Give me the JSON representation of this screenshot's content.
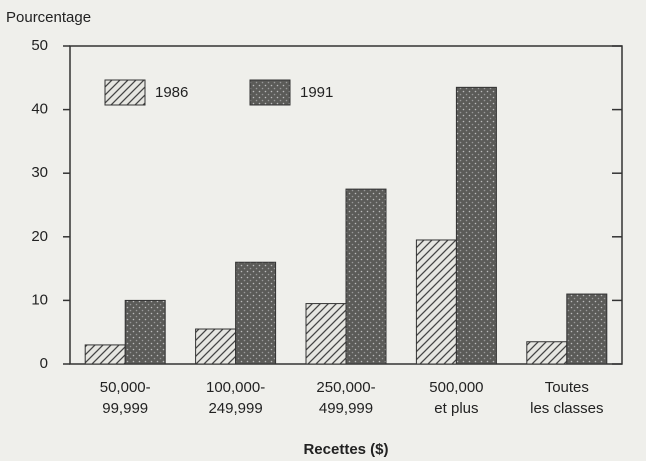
{
  "chart_data": {
    "type": "bar",
    "y_label": "Pourcentage",
    "x_label": "Recettes ($)",
    "categories": [
      [
        "50,000-",
        "99,999"
      ],
      [
        "100,000-",
        "249,999"
      ],
      [
        "250,000-",
        "499,999"
      ],
      [
        "500,000",
        "et plus"
      ],
      [
        "Toutes",
        "les classes"
      ]
    ],
    "series": [
      {
        "name": "1986",
        "color": "#e6e6e1",
        "pattern": "hatch",
        "values": [
          3,
          5.5,
          9.5,
          19.5,
          3.5
        ]
      },
      {
        "name": "1991",
        "color": "#5b5b58",
        "pattern": "dots",
        "values": [
          10,
          16,
          27.5,
          43.5,
          11
        ]
      }
    ],
    "ylim": [
      0,
      50
    ],
    "yticks": [
      0,
      10,
      20,
      30,
      40,
      50
    ],
    "grid": false,
    "legend": "top-left"
  }
}
